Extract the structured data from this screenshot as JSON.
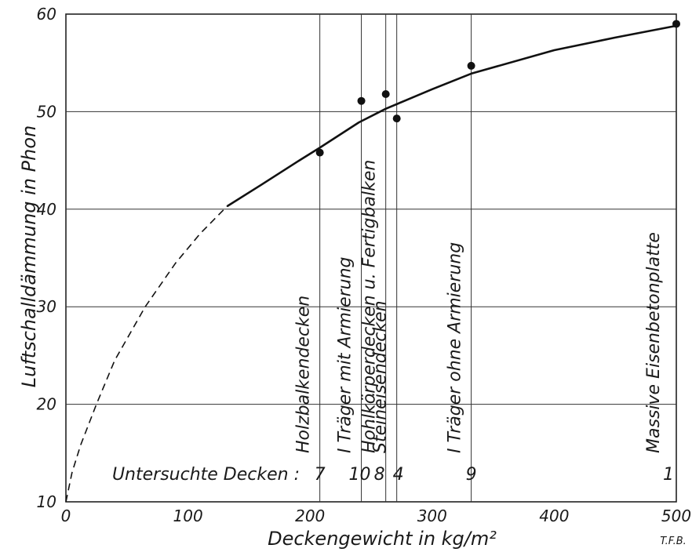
{
  "chart_data": {
    "type": "scatter",
    "title": "",
    "xlabel": "Deckengewicht in kg/m²",
    "ylabel": "Luftschalldämmung in Phon",
    "xlim": [
      0,
      500
    ],
    "ylim": [
      10,
      60
    ],
    "xticks": [
      "0",
      "100",
      "200",
      "300",
      "400",
      "500"
    ],
    "yticks": [
      "10",
      "20",
      "30",
      "40",
      "50",
      "60"
    ],
    "grid": true,
    "points": [
      {
        "x": 208,
        "y": 45.8,
        "id": "7"
      },
      {
        "x": 242,
        "y": 51.1,
        "id": "10"
      },
      {
        "x": 262,
        "y": 51.8,
        "id": "8"
      },
      {
        "x": 271,
        "y": 49.3,
        "id": "4"
      },
      {
        "x": 332,
        "y": 54.7,
        "id": "9"
      },
      {
        "x": 500,
        "y": 59.0,
        "id": "1"
      }
    ],
    "curve_solid": [
      [
        132,
        40.3
      ],
      [
        160,
        42.5
      ],
      [
        190,
        44.9
      ],
      [
        208,
        46.3
      ],
      [
        240,
        48.9
      ],
      [
        262,
        50.3
      ],
      [
        300,
        52.3
      ],
      [
        332,
        53.9
      ],
      [
        400,
        56.3
      ],
      [
        450,
        57.6
      ],
      [
        500,
        58.8
      ]
    ],
    "curve_dashed": [
      [
        0,
        10
      ],
      [
        5,
        13.0
      ],
      [
        12,
        15.8
      ],
      [
        25,
        20.0
      ],
      [
        40,
        24.5
      ],
      [
        65,
        30.0
      ],
      [
        90,
        34.5
      ],
      [
        110,
        37.5
      ],
      [
        132,
        40.3
      ]
    ],
    "reference_lines": [
      {
        "x": 208,
        "label": "Holzbalkendecken"
      },
      {
        "x": 242,
        "label": "I Träger mit Armierung"
      },
      {
        "x": 262,
        "label": "Hohlkörperdecken u. Fertigbalken"
      },
      {
        "x": 271,
        "label": "Steineisendecken"
      },
      {
        "x": 332,
        "label": "I Träger ohne Armierung"
      },
      {
        "x": 500,
        "label": "Massive Eisenbetonplatte"
      }
    ],
    "tested_label": "Untersuchte Decken :",
    "tested_numbers": [
      "7",
      "10",
      "8",
      "4",
      "9",
      "1"
    ],
    "signature": "T.F.B."
  }
}
